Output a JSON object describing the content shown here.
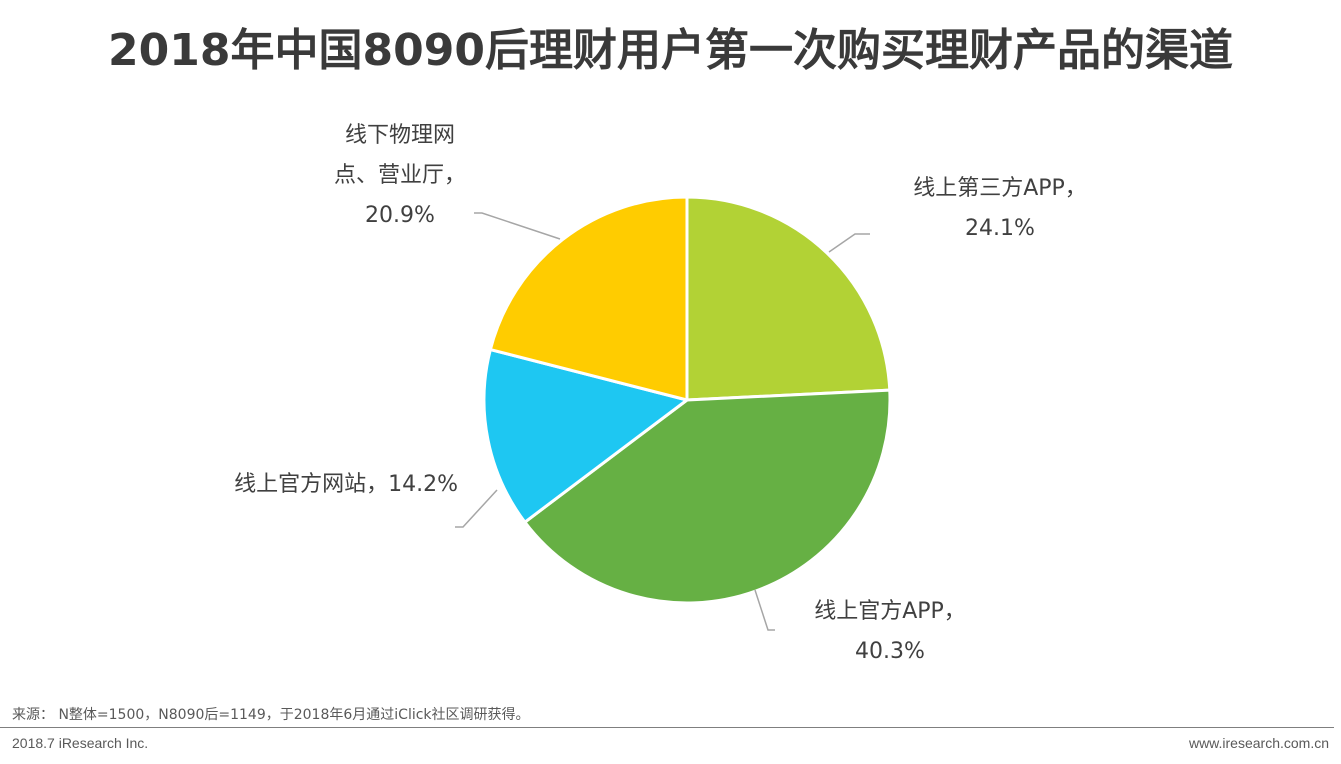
{
  "title": "2018年中国8090后理财用户第一次购买理财产品的渠道",
  "chart_data": {
    "type": "pie",
    "slices": [
      {
        "label_lines": [
          "线上第三方APP，",
          "24.1%"
        ],
        "category": "线上第三方APP",
        "value": 24.1,
        "color": "#B2D235"
      },
      {
        "label_lines": [
          "线上官方APP，",
          "40.3%"
        ],
        "category": "线上官方APP",
        "value": 40.3,
        "color": "#66B044"
      },
      {
        "label_lines": [
          "线上官方网站，14.2%"
        ],
        "category": "线上官方网站",
        "value": 14.2,
        "color": "#1EC7F2"
      },
      {
        "label_lines": [
          "线下物理网",
          "点、营业厅，",
          "20.9%"
        ],
        "category": "线下物理网点、营业厅",
        "value": 20.9,
        "color": "#FFCC00"
      }
    ]
  },
  "footer": {
    "source": "来源： N整体=1500，N8090后=1149，于2018年6月通过iClick社区调研获得。",
    "left": "2018.7 iResearch Inc.",
    "right": "www.iresearch.com.cn"
  }
}
